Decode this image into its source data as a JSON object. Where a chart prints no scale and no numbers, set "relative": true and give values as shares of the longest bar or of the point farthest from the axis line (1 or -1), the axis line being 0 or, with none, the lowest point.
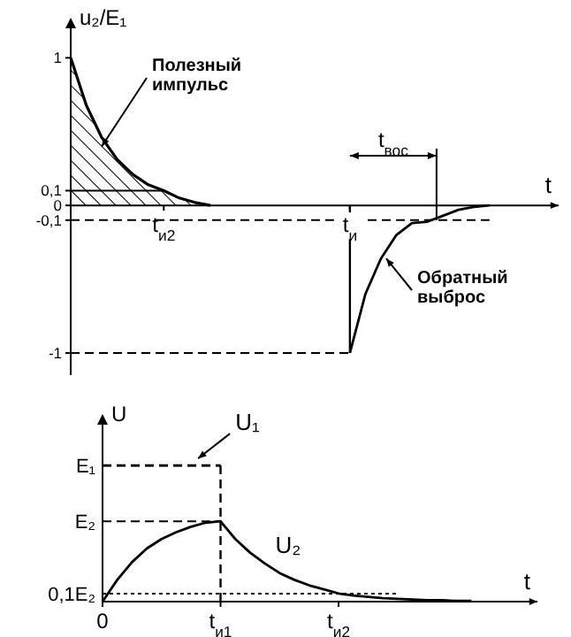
{
  "chart_data": [
    {
      "type": "line",
      "ylabel": "u₂/E₁",
      "xlabel": "t",
      "categories": [
        null,
        null,
        null,
        null,
        null,
        null,
        "t$_{и2}$",
        null,
        null,
        null,
        null,
        null,
        null,
        null,
        null,
        null,
        null,
        null,
        "t$_{и}$",
        null,
        null,
        null,
        null,
        null,
        null,
        null,
        null,
        null,
        null,
        null,
        null,
        null
      ],
      "ylim": [
        -1.15,
        1.2
      ],
      "yticks": [
        1,
        {
          "value": 0.1,
          "label": "0,1"
        },
        0,
        {
          "value": -0.1,
          "label": "-0,1"
        },
        -1
      ],
      "series": [
        {
          "type": "area",
          "color": "#000000",
          "values": [
            1,
            0.68,
            0.46,
            0.31,
            0.21,
            0.14,
            0.1,
            0.05,
            0.02,
            0,
            null,
            null,
            null,
            null,
            null,
            null,
            null,
            null,
            null,
            null,
            null,
            null,
            null,
            null,
            null,
            null,
            null,
            null,
            null,
            null,
            null,
            null
          ]
        },
        {
          "type": "line",
          "color": "#000000",
          "values": [
            null,
            null,
            null,
            null,
            null,
            null,
            null,
            null,
            null,
            null,
            null,
            null,
            null,
            null,
            null,
            null,
            null,
            null,
            -1,
            -0.6,
            -0.36,
            -0.2,
            -0.12,
            -0.11,
            -0.07,
            -0.03,
            -0.01,
            0,
            null,
            null,
            null,
            null
          ]
        }
      ],
      "ref_lines": [
        {
          "axis": "y",
          "value": 0.1,
          "line_style": "solid"
        },
        {
          "axis": "y",
          "value": -0.1,
          "line_style": "dashed"
        },
        {
          "axis": "y",
          "value": -1,
          "line_style": "dashed"
        },
        {
          "axis": "x",
          "value": "t$_{и}$",
          "line_style": "solid"
        }
      ],
      "annotations": [
        "Полезный импульс",
        "Обратный выброс",
        "t$_{вос}$"
      ]
    },
    {
      "type": "line",
      "relative": true,
      "ylabel": "U",
      "xlabel": "t",
      "categories": [
        "0",
        null,
        null,
        null,
        null,
        null,
        null,
        null,
        "t$_{и1}$",
        null,
        null,
        null,
        null,
        null,
        null,
        null,
        "t$_{и2}$",
        null,
        null,
        null,
        null,
        null,
        null,
        null,
        null,
        null,
        null,
        null,
        null,
        null
      ],
      "series": [
        {
          "name": "U₁",
          "color": "#000000",
          "line_style": "dashed",
          "values": [
            1,
            1,
            1,
            1,
            1,
            1,
            1,
            1,
            1,
            null,
            null,
            null,
            null,
            null,
            null,
            null,
            null,
            null,
            null,
            null,
            null,
            null,
            null,
            null,
            null,
            null,
            null,
            null,
            null,
            null
          ]
        },
        {
          "name": "U₂",
          "color": "#000000",
          "line_style": "solid",
          "values": [
            0,
            0.16,
            0.29,
            0.39,
            0.46,
            0.51,
            0.55,
            0.58,
            0.59,
            0.46,
            0.36,
            0.28,
            0.21,
            0.16,
            0.12,
            0.09,
            0.06,
            0.045,
            0.035,
            0.025,
            0.02,
            0.015,
            0.01,
            0.01,
            0.005,
            0.005,
            null,
            null,
            null,
            null
          ]
        }
      ],
      "ref_lines": [
        {
          "axis": "y",
          "value": 1,
          "label": "E₁",
          "line_style": "dashed"
        },
        {
          "axis": "y",
          "value": 0.59,
          "label": "E₂",
          "line_style": "dashed"
        },
        {
          "axis": "y",
          "value": 0.059,
          "label": "0,1E₂",
          "line_style": "dotted"
        },
        {
          "axis": "x",
          "value": "t$_{и1}$",
          "line_style": "dashed"
        }
      ]
    }
  ]
}
